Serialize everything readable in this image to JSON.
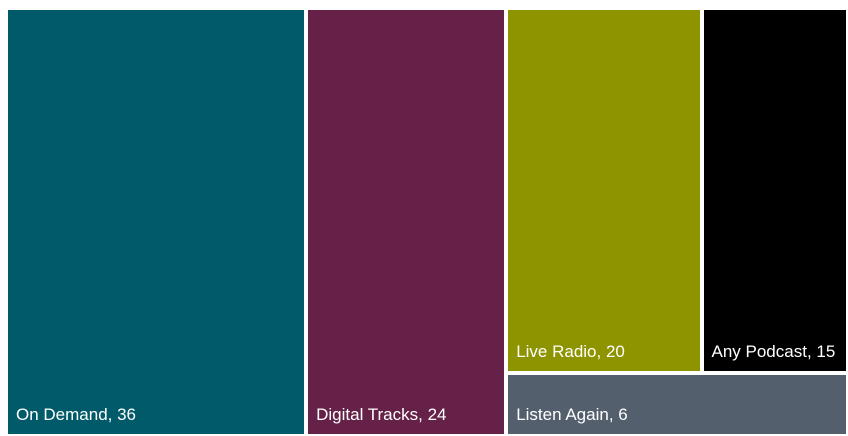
{
  "chart_data": {
    "type": "treemap",
    "values": [
      36,
      24,
      20,
      15,
      6
    ],
    "value_labels": [
      "On Demand, 36",
      "Digital Tracks, 24",
      "Live Radio, 20",
      "Any Podcast, 15",
      "Listen Again, 6"
    ],
    "colors": [
      "#015a69",
      "#652147",
      "#8e9300",
      "#000000",
      "#545f6d"
    ]
  }
}
